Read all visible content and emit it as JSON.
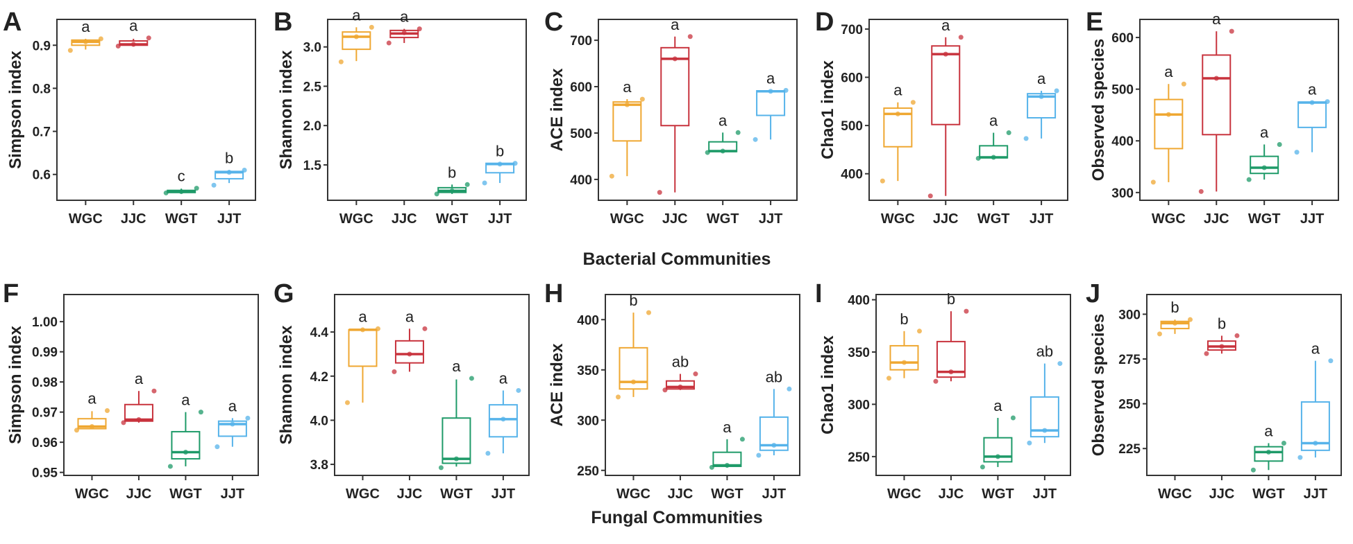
{
  "section_titles": {
    "bacterial": "Bacterial Communities",
    "fungal": "Fungal Communities"
  },
  "colors": {
    "WGC": "#efa731",
    "JJC": "#c8333d",
    "WGT": "#1e9a68",
    "JJT": "#56b3ea"
  },
  "chart_data": [
    {
      "panel": "A",
      "type": "box",
      "ylabel": "Simpson index",
      "categories": [
        "WGC",
        "JJC",
        "WGT",
        "JJT"
      ],
      "ylim": [
        0.54,
        0.96
      ],
      "yticks": [
        "0.6",
        "0.7",
        "0.8",
        "0.9"
      ],
      "boxes": [
        [
          0.89,
          0.9,
          0.908,
          0.912,
          0.915
        ],
        [
          0.898,
          0.9,
          0.902,
          0.91,
          0.915
        ],
        [
          0.556,
          0.558,
          0.56,
          0.563,
          0.567
        ],
        [
          0.58,
          0.59,
          0.605,
          0.607,
          0.61
        ]
      ],
      "points": [
        [
          0.888,
          0.908,
          0.915
        ],
        [
          0.898,
          0.902,
          0.917
        ],
        [
          0.557,
          0.56,
          0.568
        ],
        [
          0.575,
          0.605,
          0.61
        ]
      ],
      "letters": [
        "a",
        "a",
        "c",
        "b"
      ]
    },
    {
      "panel": "B",
      "type": "box",
      "ylabel": "Shannon index",
      "categories": [
        "WGC",
        "JJC",
        "WGT",
        "JJT"
      ],
      "ylim": [
        1.05,
        3.35
      ],
      "yticks": [
        "1.5",
        "2.0",
        "2.5",
        "3.0"
      ],
      "boxes": [
        [
          2.82,
          2.97,
          3.13,
          3.19,
          3.25
        ],
        [
          3.05,
          3.12,
          3.17,
          3.21,
          3.23
        ],
        [
          1.13,
          1.15,
          1.17,
          1.21,
          1.25
        ],
        [
          1.27,
          1.4,
          1.51,
          1.52,
          1.52
        ]
      ],
      "points": [
        [
          2.81,
          3.13,
          3.25
        ],
        [
          3.05,
          3.18,
          3.23
        ],
        [
          1.13,
          1.17,
          1.25
        ],
        [
          1.27,
          1.51,
          1.52
        ]
      ],
      "letters": [
        "a",
        "a",
        "b",
        "b"
      ]
    },
    {
      "panel": "C",
      "type": "box",
      "ylabel": "ACE index",
      "categories": [
        "WGC",
        "JJC",
        "WGT",
        "JJT"
      ],
      "ylim": [
        355,
        745
      ],
      "yticks": [
        "400",
        "500",
        "600",
        "700"
      ],
      "boxes": [
        [
          407,
          483,
          561,
          567,
          573
        ],
        [
          372,
          516,
          660,
          684,
          708
        ],
        [
          458,
          460,
          461,
          481,
          501
        ],
        [
          486,
          538,
          590,
          591,
          592
        ]
      ],
      "points": [
        [
          407,
          561,
          573
        ],
        [
          372,
          660,
          708
        ],
        [
          458,
          461,
          501
        ],
        [
          486,
          590,
          592
        ]
      ],
      "letters": [
        "a",
        "a",
        "a",
        "a"
      ]
    },
    {
      "panel": "D",
      "type": "box",
      "ylabel": "Chao1 index",
      "categories": [
        "WGC",
        "JJC",
        "WGT",
        "JJT"
      ],
      "ylim": [
        345,
        720
      ],
      "yticks": [
        "400",
        "500",
        "600",
        "700"
      ],
      "boxes": [
        [
          385,
          456,
          524,
          536,
          548
        ],
        [
          354,
          502,
          648,
          665,
          683
        ],
        [
          432,
          433,
          434,
          458,
          485
        ],
        [
          473,
          516,
          560,
          566,
          572
        ]
      ],
      "points": [
        [
          385,
          524,
          548
        ],
        [
          354,
          648,
          683
        ],
        [
          432,
          434,
          485
        ],
        [
          473,
          560,
          572
        ]
      ],
      "letters": [
        "a",
        "a",
        "a",
        "a"
      ]
    },
    {
      "panel": "E",
      "type": "box",
      "ylabel": "Observed species",
      "categories": [
        "WGC",
        "JJC",
        "WGT",
        "JJT"
      ],
      "ylim": [
        285,
        635
      ],
      "yticks": [
        "300",
        "400",
        "500",
        "600"
      ],
      "boxes": [
        [
          320,
          385,
          451,
          480,
          510
        ],
        [
          302,
          412,
          521,
          566,
          612
        ],
        [
          325,
          337,
          348,
          370,
          393
        ],
        [
          378,
          426,
          474,
          475,
          476
        ]
      ],
      "points": [
        [
          320,
          451,
          510
        ],
        [
          302,
          521,
          612
        ],
        [
          325,
          348,
          393
        ],
        [
          378,
          474,
          476
        ]
      ],
      "letters": [
        "a",
        "a",
        "a",
        "a"
      ]
    },
    {
      "panel": "F",
      "type": "box",
      "ylabel": "Simpson index",
      "categories": [
        "WGC",
        "JJC",
        "WGT",
        "JJT"
      ],
      "ylim": [
        0.949,
        1.009
      ],
      "yticks": [
        "0.95",
        "0.96",
        "0.97",
        "0.98",
        "0.99",
        "1.00"
      ],
      "boxes": [
        [
          0.9643,
          0.9645,
          0.9652,
          0.9678,
          0.9703
        ],
        [
          0.9665,
          0.967,
          0.9675,
          0.9725,
          0.977
        ],
        [
          0.952,
          0.9545,
          0.9567,
          0.9635,
          0.97
        ],
        [
          0.9585,
          0.962,
          0.966,
          0.967,
          0.968
        ]
      ],
      "points": [
        [
          0.964,
          0.9652,
          0.9705
        ],
        [
          0.9665,
          0.9675,
          0.977
        ],
        [
          0.952,
          0.9567,
          0.97
        ],
        [
          0.9585,
          0.966,
          0.968
        ]
      ],
      "letters": [
        "a",
        "a",
        "a",
        "a"
      ]
    },
    {
      "panel": "G",
      "type": "box",
      "ylabel": "Shannon index",
      "categories": [
        "WGC",
        "JJC",
        "WGT",
        "JJT"
      ],
      "ylim": [
        3.75,
        4.57
      ],
      "yticks": [
        "3.8",
        "4.0",
        "4.2",
        "4.4"
      ],
      "boxes": [
        [
          4.08,
          4.245,
          4.41,
          4.41,
          4.415
        ],
        [
          4.22,
          4.26,
          4.3,
          4.36,
          4.415
        ],
        [
          3.79,
          3.805,
          3.825,
          4.01,
          4.185
        ],
        [
          3.85,
          3.925,
          4.005,
          4.07,
          4.135
        ]
      ],
      "points": [
        [
          4.08,
          4.41,
          4.415
        ],
        [
          4.22,
          4.3,
          4.415
        ],
        [
          3.785,
          3.825,
          4.19
        ],
        [
          3.85,
          4.005,
          4.135
        ]
      ],
      "letters": [
        "a",
        "a",
        "a",
        "a"
      ]
    },
    {
      "panel": "H",
      "type": "box",
      "ylabel": "ACE index",
      "categories": [
        "WGC",
        "JJC",
        "WGT",
        "JJT"
      ],
      "ylim": [
        245,
        425
      ],
      "yticks": [
        "250",
        "300",
        "350",
        "400"
      ],
      "boxes": [
        [
          323,
          331,
          338,
          372,
          407
        ],
        [
          330,
          331,
          333,
          339,
          346
        ],
        [
          253,
          254,
          255,
          268,
          281
        ],
        [
          265,
          270,
          275,
          303,
          331
        ]
      ],
      "points": [
        [
          323,
          338,
          407
        ],
        [
          330,
          333,
          346
        ],
        [
          253,
          255,
          281
        ],
        [
          265,
          275,
          331
        ]
      ],
      "letters": [
        "b",
        "ab",
        "a",
        "ab"
      ]
    },
    {
      "panel": "I",
      "type": "box",
      "ylabel": "Chao1 index",
      "categories": [
        "WGC",
        "JJC",
        "WGT",
        "JJT"
      ],
      "ylim": [
        232,
        405
      ],
      "yticks": [
        "250",
        "300",
        "350",
        "400"
      ],
      "boxes": [
        [
          325,
          333,
          340,
          356,
          370
        ],
        [
          322,
          326,
          331,
          360,
          389
        ],
        [
          240,
          245,
          250,
          268,
          287
        ],
        [
          263,
          269,
          275,
          307,
          339
        ]
      ],
      "points": [
        [
          325,
          340,
          370
        ],
        [
          322,
          331,
          389
        ],
        [
          240,
          250,
          287
        ],
        [
          263,
          275,
          339
        ]
      ],
      "letters": [
        "b",
        "b",
        "a",
        "ab"
      ]
    },
    {
      "panel": "J",
      "type": "box",
      "ylabel": "Observed species",
      "categories": [
        "WGC",
        "JJC",
        "WGT",
        "JJT"
      ],
      "ylim": [
        210,
        311
      ],
      "yticks": [
        "225",
        "250",
        "275",
        "300"
      ],
      "boxes": [
        [
          289,
          292,
          295,
          296,
          297
        ],
        [
          278,
          280,
          282,
          285,
          288
        ],
        [
          213,
          218,
          223,
          226,
          228
        ],
        [
          220,
          224,
          228,
          251,
          274
        ]
      ],
      "points": [
        [
          289,
          295,
          297
        ],
        [
          278,
          282,
          288
        ],
        [
          213,
          223,
          228
        ],
        [
          220,
          228,
          274
        ]
      ],
      "letters": [
        "b",
        "b",
        "a",
        "a"
      ]
    }
  ]
}
